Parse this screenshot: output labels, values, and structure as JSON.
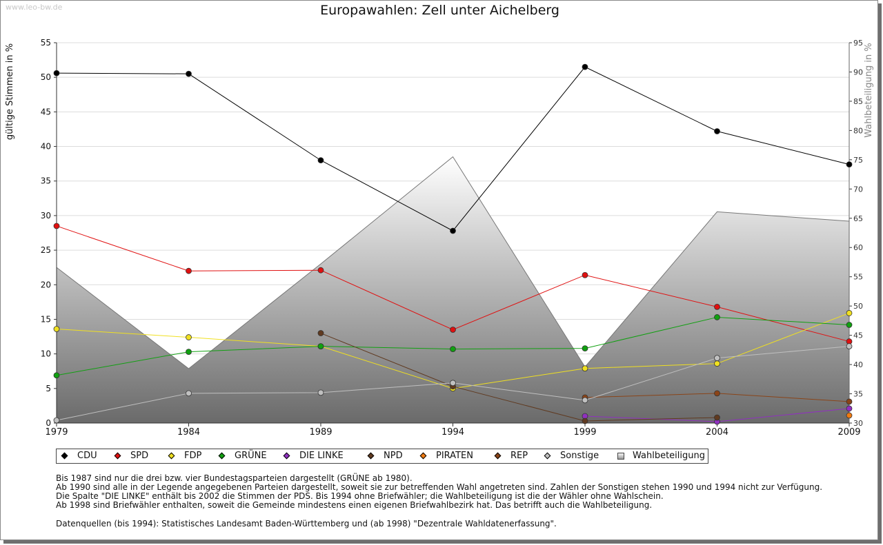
{
  "watermark": "www.leo-bw.de",
  "chart_data": {
    "type": "line",
    "title": "Europawahlen: Zell unter Aichelberg",
    "ylabel": "gültige Stimmen in %",
    "ylabel_right": "Wahlbeteiligung in %",
    "x": [
      "1979",
      "1984",
      "1989",
      "1994",
      "1999",
      "2004",
      "2009"
    ],
    "ylim": [
      0,
      55
    ],
    "yticks": [
      "0",
      "5",
      "10",
      "15",
      "20",
      "25",
      "30",
      "35",
      "40",
      "45",
      "50",
      "55"
    ],
    "ylim_right": [
      30,
      95
    ],
    "yticks_right": [
      "30",
      "35",
      "40",
      "45",
      "50",
      "55",
      "60",
      "65",
      "70",
      "75",
      "80",
      "85",
      "90",
      "95"
    ],
    "grid": true,
    "legend_position": "bottom",
    "area": {
      "name": "Wahlbeteiligung",
      "values": [
        56.6,
        39.3,
        57.2,
        75.5,
        39.6,
        66.1,
        64.5
      ]
    },
    "series": [
      {
        "name": "CDU",
        "color": "#000000",
        "values": [
          50.6,
          50.5,
          38.0,
          27.8,
          51.5,
          42.2,
          37.4
        ]
      },
      {
        "name": "SPD",
        "color": "#e01010",
        "values": [
          28.5,
          22.0,
          22.1,
          13.5,
          21.4,
          16.8,
          11.8
        ]
      },
      {
        "name": "FDP",
        "color": "#f0e020",
        "values": [
          13.6,
          12.4,
          11.1,
          5.0,
          7.9,
          8.6,
          15.9
        ]
      },
      {
        "name": "GRÜNE",
        "color": "#10a010",
        "values": [
          6.9,
          10.3,
          11.1,
          10.7,
          10.8,
          15.3,
          14.2
        ]
      },
      {
        "name": "DIE LINKE",
        "color": "#9030c0",
        "values": [
          null,
          null,
          null,
          null,
          1.0,
          0.2,
          2.1
        ]
      },
      {
        "name": "NPD",
        "color": "#603a20",
        "values": [
          null,
          null,
          13.0,
          5.3,
          0.3,
          0.8,
          null
        ]
      },
      {
        "name": "PIRATEN",
        "color": "#f07a10",
        "values": [
          null,
          null,
          null,
          null,
          null,
          null,
          1.1
        ]
      },
      {
        "name": "REP",
        "color": "#8a4418",
        "values": [
          null,
          null,
          null,
          null,
          3.7,
          4.3,
          3.1
        ]
      },
      {
        "name": "Sonstige",
        "color": "#c0c0c0",
        "values": [
          0.4,
          4.3,
          4.4,
          5.8,
          3.3,
          9.4,
          11.1
        ]
      }
    ],
    "legend": [
      "CDU",
      "SPD",
      "FDP",
      "GRÜNE",
      "DIE LINKE",
      "NPD",
      "PIRATEN",
      "REP",
      "Sonstige",
      "Wahlbeteiligung"
    ],
    "legend_colors": [
      "#000000",
      "#e01010",
      "#f0e020",
      "#10a010",
      "#9030c0",
      "#603a20",
      "#f07a10",
      "#8a4418",
      "#c0c0c0",
      "#bbbbbb"
    ]
  },
  "notes": [
    "Bis 1987 sind nur die drei bzw. vier Bundestagsparteien dargestellt (GRÜNE ab 1980).",
    "Ab 1990 sind alle in der Legende angegebenen Parteien dargestellt, soweit sie zur betreffenden Wahl angetreten sind. Zahlen der Sonstigen stehen 1990 und 1994 nicht zur Verfügung.",
    "Die Spalte \"DIE LINKE\" enthält bis 2002 die Stimmen der PDS. Bis 1994 ohne Briefwähler; die Wahlbeteiligung ist die der Wähler ohne Wahlschein.",
    "Ab 1998 sind Briefwähler enthalten, soweit die Gemeinde mindestens einen eigenen Briefwahlbezirk hat. Das betrifft auch die Wahlbeteiligung."
  ],
  "source": "Datenquellen (bis 1994): Statistisches Landesamt Baden-Württemberg und (ab 1998) \"Dezentrale Wahldatenerfassung\"."
}
